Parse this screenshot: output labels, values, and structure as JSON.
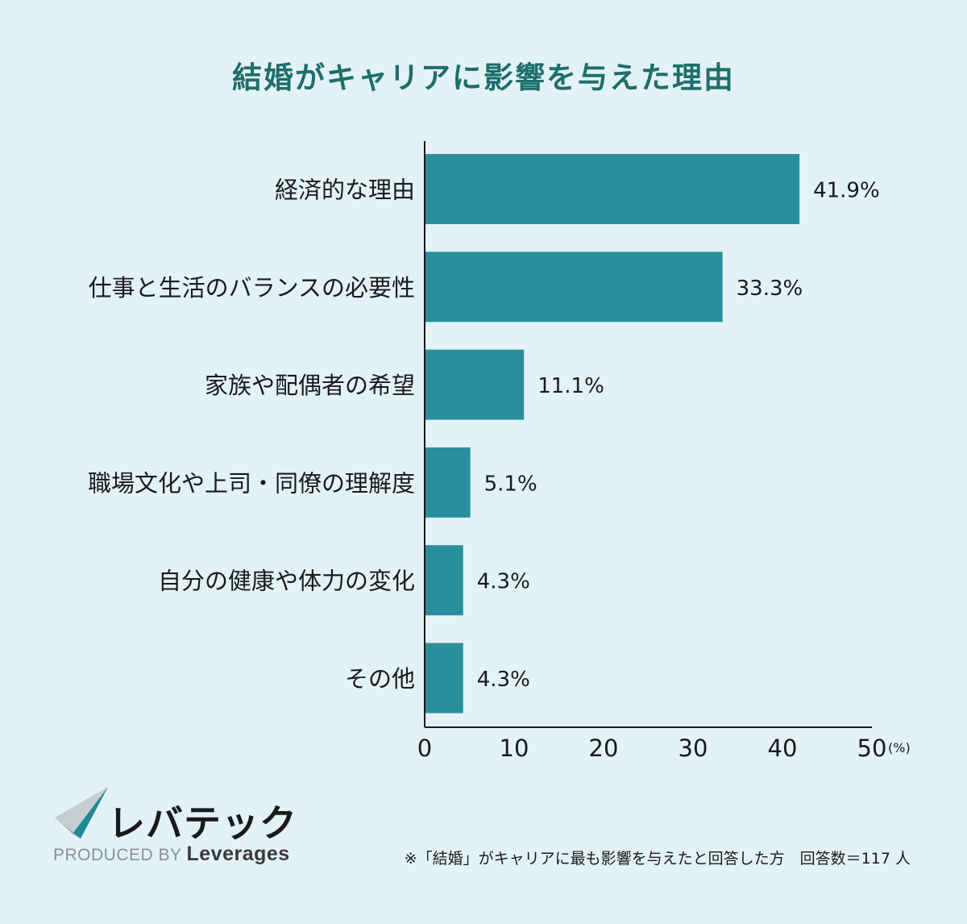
{
  "chart_data": {
    "type": "bar",
    "orientation": "horizontal",
    "title": "結婚がキャリアに影響を与えた理由",
    "categories": [
      "経済的な理由",
      "仕事と生活のバランスの必要性",
      "家族や配偶者の希望",
      "職場文化や上司・同僚の理解度",
      "自分の健康や体力の変化",
      "その他"
    ],
    "values": [
      41.9,
      33.3,
      11.1,
      5.1,
      4.3,
      4.3
    ],
    "value_labels": [
      "41.9%",
      "33.3%",
      "11.1%",
      "5.1%",
      "4.3%",
      "4.3%"
    ],
    "xlim": [
      0,
      50
    ],
    "xticks": [
      "0",
      "10",
      "20",
      "30",
      "40",
      "50"
    ],
    "x_unit": "(%)",
    "bar_color": "#2a8f9c"
  },
  "branding": {
    "logo_text": "レバテック",
    "produced_by": "PRODUCED BY",
    "company": "Leverages"
  },
  "footnote": "※「結婚」がキャリアに最も影響を与えたと回答した方　回答数＝117 人"
}
